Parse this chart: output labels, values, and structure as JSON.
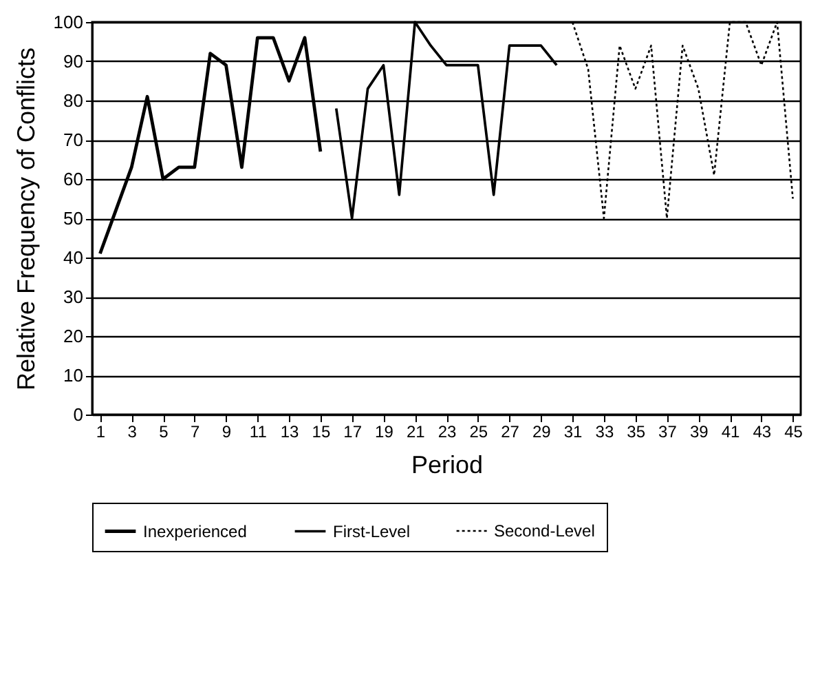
{
  "chart_data": {
    "type": "line",
    "xlabel": "Period",
    "ylabel": "Relative Frequency of Conflicts",
    "xlim": [
      0.5,
      45.5
    ],
    "ylim": [
      0,
      100
    ],
    "xticks": [
      1,
      3,
      5,
      7,
      9,
      11,
      13,
      15,
      17,
      19,
      21,
      23,
      25,
      27,
      29,
      31,
      33,
      35,
      37,
      39,
      41,
      43,
      45
    ],
    "yticks": [
      0,
      10,
      20,
      30,
      40,
      50,
      60,
      70,
      80,
      90,
      100
    ],
    "grid": "y",
    "legend": "bottom",
    "marker": "none",
    "series": [
      {
        "name": "Inexperienced",
        "color": "#000000",
        "line_style": "solid",
        "x": [
          1,
          2,
          3,
          4,
          5,
          6,
          7,
          8,
          9,
          10,
          11,
          12,
          13,
          14,
          15
        ],
        "values": [
          41,
          52,
          63,
          81,
          60,
          63,
          63,
          92,
          89,
          63,
          96,
          96,
          85,
          96,
          67
        ]
      },
      {
        "name": "First-Level",
        "color": "#000000",
        "line_style": "solid",
        "x": [
          16,
          17,
          18,
          19,
          20,
          21,
          22,
          23,
          24,
          25,
          26,
          27,
          28,
          29,
          30
        ],
        "values": [
          78,
          50,
          83,
          89,
          56,
          100,
          94,
          89,
          89,
          89,
          56,
          94,
          94,
          94,
          89
        ]
      },
      {
        "name": "Second-Level",
        "color": "#000000",
        "line_style": "dotted",
        "x": [
          31,
          32,
          33,
          34,
          35,
          36,
          37,
          38,
          39,
          40,
          41,
          42,
          43,
          44,
          45
        ],
        "values": [
          100,
          88,
          50,
          94,
          83,
          94,
          50,
          94,
          83,
          61,
          100,
          100,
          89,
          100,
          55
        ]
      }
    ]
  }
}
